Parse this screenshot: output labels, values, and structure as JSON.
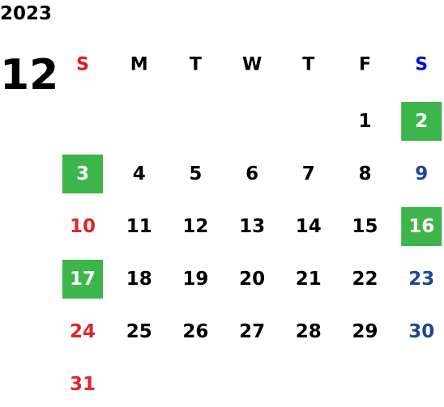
{
  "year": "2023",
  "month": "12",
  "weekdays": [
    "S",
    "M",
    "T",
    "W",
    "T",
    "F",
    "S"
  ],
  "weeks": [
    [
      null,
      null,
      null,
      null,
      null,
      {
        "day": 1
      },
      {
        "day": 2,
        "highlight": true
      }
    ],
    [
      {
        "day": 3,
        "highlight": true
      },
      {
        "day": 4
      },
      {
        "day": 5
      },
      {
        "day": 6
      },
      {
        "day": 7
      },
      {
        "day": 8
      },
      {
        "day": 9
      }
    ],
    [
      {
        "day": 10
      },
      {
        "day": 11
      },
      {
        "day": 12
      },
      {
        "day": 13
      },
      {
        "day": 14
      },
      {
        "day": 15
      },
      {
        "day": 16,
        "highlight": true
      }
    ],
    [
      {
        "day": 17,
        "highlight": true
      },
      {
        "day": 18
      },
      {
        "day": 19
      },
      {
        "day": 20
      },
      {
        "day": 21
      },
      {
        "day": 22
      },
      {
        "day": 23
      }
    ],
    [
      {
        "day": 24
      },
      {
        "day": 25
      },
      {
        "day": 26
      },
      {
        "day": 27
      },
      {
        "day": 28
      },
      {
        "day": 29
      },
      {
        "day": 30
      }
    ],
    [
      {
        "day": 31
      },
      null,
      null,
      null,
      null,
      null,
      null
    ]
  ]
}
